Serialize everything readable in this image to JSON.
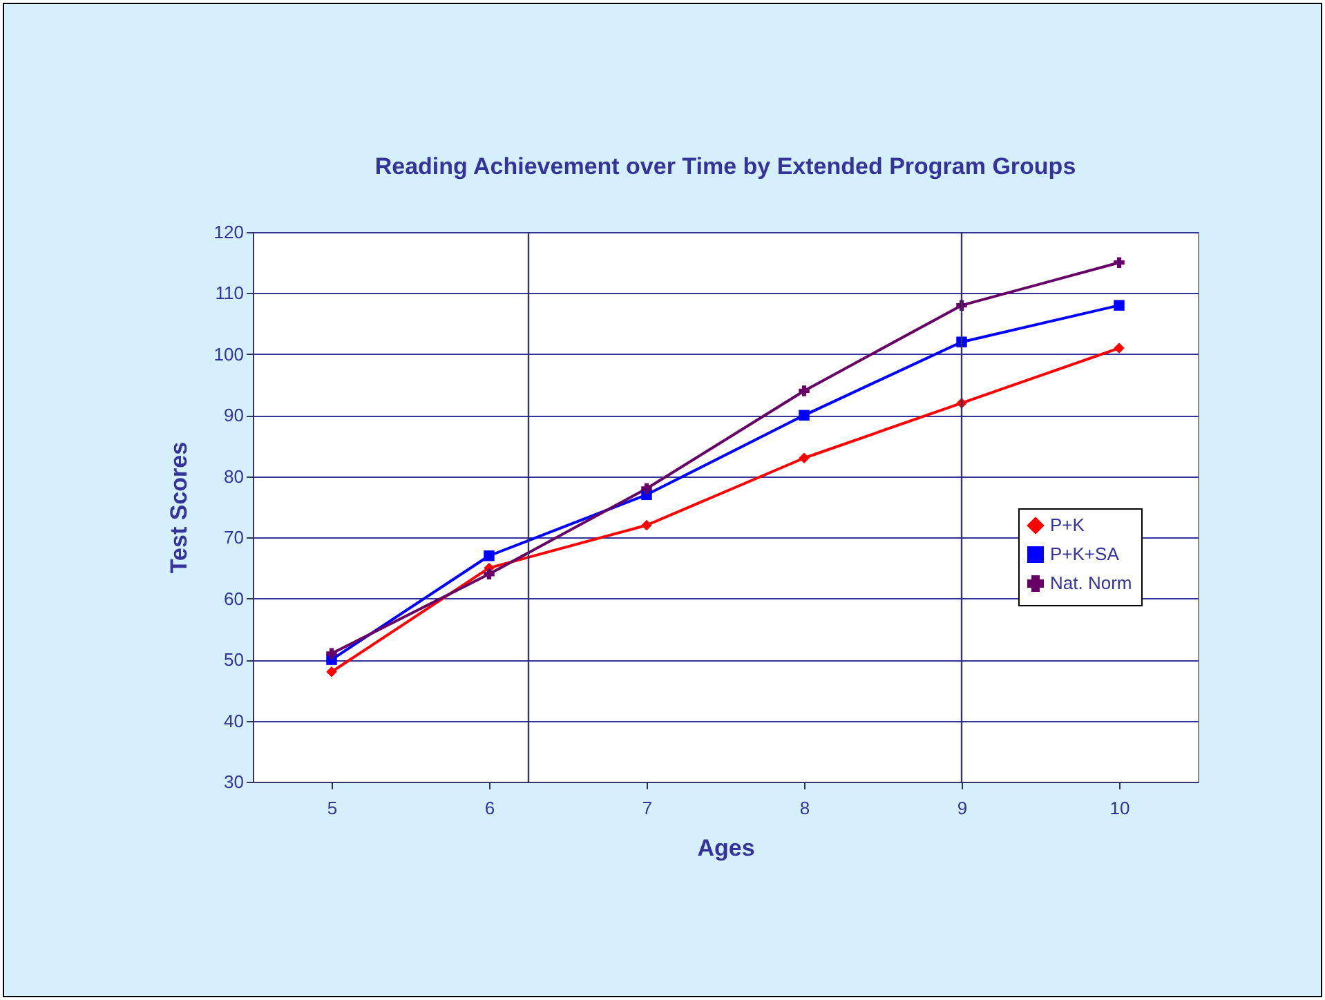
{
  "chart_data": {
    "type": "line",
    "title": "Reading Achievement over Time by Extended Program Groups",
    "xlabel": "Ages",
    "ylabel": "Test Scores",
    "x": [
      5,
      6,
      7,
      8,
      9,
      10
    ],
    "xlim": [
      4.5,
      10.5
    ],
    "xticks": [
      5,
      6,
      7,
      8,
      9,
      10
    ],
    "ylim": [
      30,
      120
    ],
    "yticks": [
      30,
      40,
      50,
      60,
      70,
      80,
      90,
      100,
      110,
      120
    ],
    "grid": "y",
    "legend": "right",
    "ref_lines": [
      {
        "axis": "x",
        "value": 6.25,
        "color": "#333366"
      },
      {
        "axis": "x",
        "value": 9,
        "color": "#333366"
      }
    ],
    "series": [
      {
        "name": "P+K",
        "color": "#ff0000",
        "marker": "diamond",
        "values": [
          48,
          65,
          72,
          83,
          92,
          101
        ]
      },
      {
        "name": "P+K+SA",
        "color": "#0000ff",
        "marker": "square",
        "values": [
          50,
          67,
          77,
          90,
          102,
          108
        ]
      },
      {
        "name": "Nat. Norm",
        "color": "#660066",
        "marker": "cross",
        "values": [
          51,
          64,
          78,
          94,
          108,
          115
        ]
      }
    ]
  }
}
